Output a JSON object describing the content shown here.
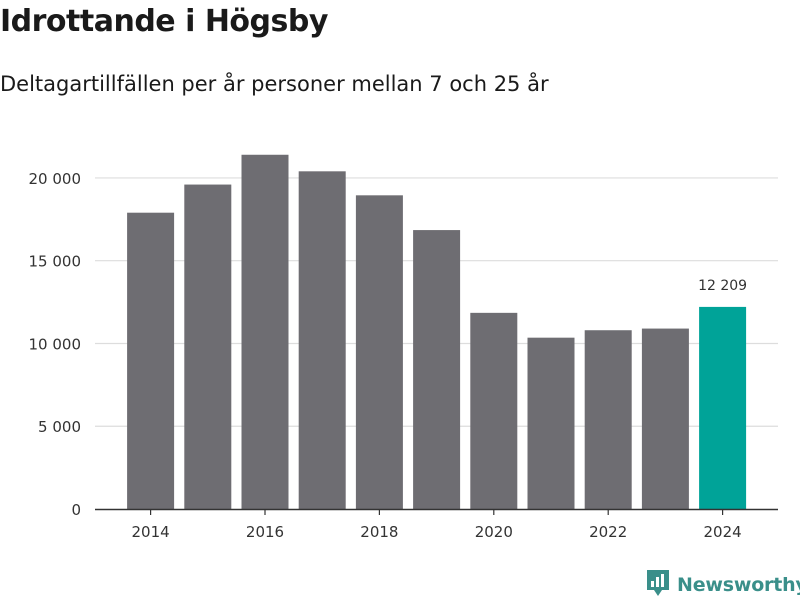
{
  "header": {
    "title": "Idrottande i Högsby",
    "subtitle": "Deltagartillfällen per år personer mellan 7 och 25 år"
  },
  "brand": {
    "name": "Newsworthy",
    "color": "#3a8f8a"
  },
  "colors": {
    "bar": "#6e6d72",
    "highlight": "#00a398",
    "grid": "#dddddd",
    "axis": "#333333",
    "text": "#333333"
  },
  "chart_data": {
    "type": "bar",
    "categories": [
      2014,
      2015,
      2016,
      2017,
      2018,
      2019,
      2020,
      2021,
      2022,
      2023,
      2024
    ],
    "values": [
      17900,
      19600,
      21400,
      20400,
      18950,
      16850,
      11850,
      10350,
      10800,
      10900,
      12209
    ],
    "highlight_index": 10,
    "x_tick_labels": [
      "2014",
      "2016",
      "2018",
      "2020",
      "2022",
      "2024"
    ],
    "y_ticks": [
      0,
      5000,
      10000,
      15000,
      20000
    ],
    "y_tick_labels": [
      "0",
      "5 000",
      "10 000",
      "15 000",
      "20 000"
    ],
    "ylim": [
      0,
      23500
    ],
    "grid": true,
    "data_labels": [
      {
        "index": 10,
        "text": "12 209"
      }
    ],
    "title": "Idrottande i Högsby",
    "subtitle": "Deltagartillfällen per år personer mellan 7 och 25 år",
    "xlabel": "",
    "ylabel": ""
  }
}
